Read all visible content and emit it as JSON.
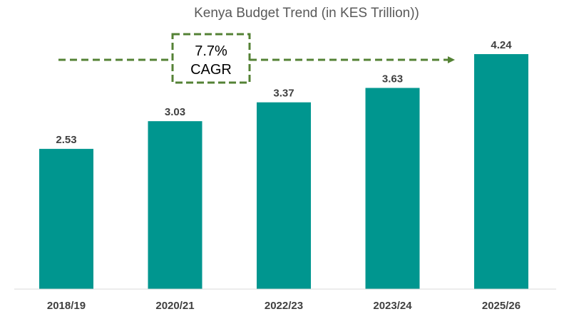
{
  "chart_data": {
    "type": "bar",
    "title": "Kenya Budget Trend (in KES Trillion))",
    "categories": [
      "2018/19",
      "2020/21",
      "2022/23",
      "2023/24",
      "2025/26"
    ],
    "values": [
      2.53,
      3.03,
      3.37,
      3.63,
      4.24
    ],
    "value_labels": [
      "2.53",
      "3.03",
      "3.37",
      "3.63",
      "4.24"
    ],
    "xlabel": "",
    "ylabel": "",
    "ylim": [
      0,
      4.24
    ],
    "grid": false,
    "legend": "none",
    "annotation": {
      "line1": "7.7%",
      "line2": "CAGR"
    }
  },
  "colors": {
    "bar": "#00968F",
    "annotation": "#548235",
    "axis": "#D9D9D9",
    "text": "#404040",
    "title": "#595959"
  }
}
